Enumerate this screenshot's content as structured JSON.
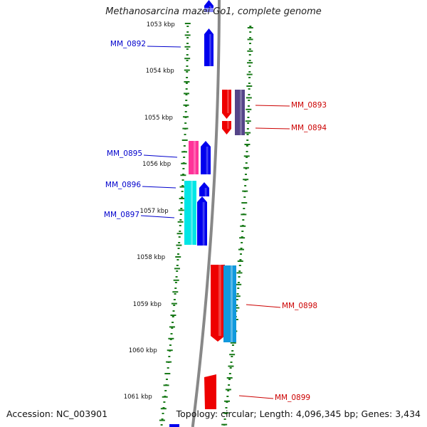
{
  "title": "Methanosarcina mazei Go1, complete genome",
  "accession": "Accession: NC_003901",
  "summary": "Topology: circular; Length: 4,096,345 bp; Genes: 3,434",
  "colors": {
    "backbone": "#888888",
    "ticks": "#1a7a1a",
    "forward_label": "#0000cc",
    "reverse_label": "#cc0000"
  },
  "scale": {
    "unit": "kbp",
    "labels": [
      "1053 kbp",
      "1054 kbp",
      "1055 kbp",
      "1056 kbp",
      "1057 kbp",
      "1058 kbp",
      "1059 kbp",
      "1060 kbp",
      "1061 kbp"
    ]
  },
  "genes": [
    {
      "name": "MM_0892",
      "strand": "forward",
      "color": "#0000ee"
    },
    {
      "name": "MM_0893",
      "strand": "reverse",
      "color": "#ee0000"
    },
    {
      "name": "MM_0894",
      "strand": "reverse",
      "color": "#554488"
    },
    {
      "name": "MM_0895",
      "strand": "forward",
      "color": "#ff3399"
    },
    {
      "name": "MM_0896",
      "strand": "forward",
      "color": "#0000ee"
    },
    {
      "name": "MM_0897",
      "strand": "forward",
      "color": "#00e6e6"
    },
    {
      "name": "MM_0898",
      "strand": "reverse",
      "color": "#ee0000"
    },
    {
      "name": "MM_0899",
      "strand": "reverse",
      "color": "#ee0000"
    },
    {
      "name": "",
      "strand": "reverse",
      "color": "#1199dd"
    }
  ]
}
